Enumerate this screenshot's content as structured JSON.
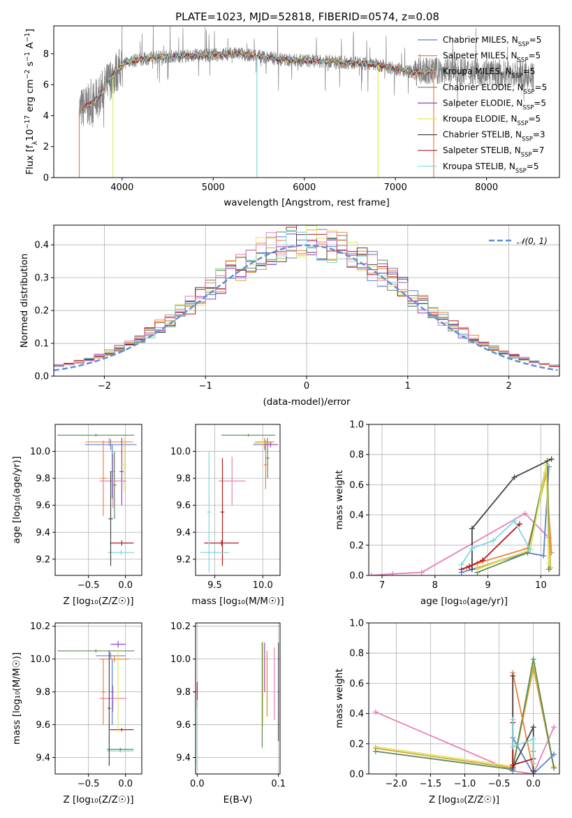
{
  "figure": {
    "title": "PLATE=1023, MJD=52818, FIBERID=0574, z=0.08"
  },
  "colors": {
    "chabrier_miles": "#5b7fd1",
    "salpeter_miles": "#f0803c",
    "kroupa_miles": "#d6a63a",
    "chabrier_elodie": "#5a8a5a",
    "salpeter_elodie": "#9b3fbf",
    "kroupa_elodie": "#e0e85a",
    "chabrier_stelib": "#444444",
    "salpeter_stelib": "#b01a1a",
    "kroupa_stelib": "#7fd8e0",
    "pink": "#e87fb8",
    "gauss": "#5b8fd9",
    "data_gray": "#7f7f7f"
  },
  "legend_spectrum": [
    {
      "label": "Chabrier MILES, N",
      "sub": "SSP",
      "suffix": "=5",
      "color": "#5b7fd1"
    },
    {
      "label": "Salpeter MILES, N",
      "sub": "SSP",
      "suffix": "=5",
      "color": "#f0803c"
    },
    {
      "label": "Kroupa MILES, N",
      "sub": "SSP",
      "suffix": "=5",
      "color": "#d6a63a"
    },
    {
      "label": "Chabrier ELODIE, N",
      "sub": "SSP",
      "suffix": "=5",
      "color": "#5a8a5a"
    },
    {
      "label": "Salpeter ELODIE, N",
      "sub": "SSP",
      "suffix": "=5",
      "color": "#9b3fbf"
    },
    {
      "label": "Kroupa ELODIE, N",
      "sub": "SSP",
      "suffix": "=5",
      "color": "#e0e85a"
    },
    {
      "label": "Chabrier STELIB, N",
      "sub": "SSP",
      "suffix": "=3",
      "color": "#444444"
    },
    {
      "label": "Salpeter STELIB, N",
      "sub": "SSP",
      "suffix": "=7",
      "color": "#b01a1a"
    },
    {
      "label": "Kroupa STELIB, N",
      "sub": "SSP",
      "suffix": "=5",
      "color": "#7fd8e0"
    }
  ],
  "legend_gauss": "𝒩(0, 1)",
  "chart_data": [
    {
      "id": "spectrum",
      "type": "line",
      "xlabel": "wavelength [Angstrom, rest frame]",
      "ylabel_parts": [
        "Flux [f",
        "λ",
        "10",
        "−17",
        " erg cm",
        "−2",
        " s",
        "−1",
        " A",
        "−1",
        "]"
      ],
      "xlim": [
        3250,
        8800
      ],
      "ylim": [
        0,
        9.8
      ],
      "xticks": [
        4000,
        5000,
        6000,
        7000,
        8000
      ],
      "yticks": [
        0,
        2,
        4,
        6,
        8
      ],
      "continuum": {
        "x": [
          3530,
          3700,
          3900,
          4050,
          4400,
          4900,
          5300,
          5800,
          6300,
          6800,
          7200,
          7420,
          7600,
          8000,
          8400,
          8520
        ],
        "y": [
          4.4,
          4.9,
          6.6,
          7.5,
          7.8,
          7.9,
          8.0,
          7.6,
          7.5,
          7.3,
          6.8,
          6.9,
          6.9,
          6.8,
          6.6,
          6.5
        ]
      },
      "dropouts": [
        {
          "x": 3530,
          "color": "#f0803c"
        },
        {
          "x": 3900,
          "color": "#e0e85a"
        },
        {
          "x": 5480,
          "color": "#7fd8e0"
        },
        {
          "x": 6810,
          "color": "#e0e85a"
        },
        {
          "x": 7420,
          "color": "#f0803c"
        }
      ],
      "grid": false,
      "legend_position": "right"
    },
    {
      "id": "residuals",
      "type": "step",
      "xlabel": "(data-model)/error",
      "ylabel": "Normed distribution",
      "xlim": [
        -2.5,
        2.5
      ],
      "ylim": [
        0,
        0.46
      ],
      "xticks": [
        -2,
        -1,
        0,
        1,
        2
      ],
      "yticks": [
        0,
        0.1,
        0.2,
        0.3,
        0.4
      ],
      "bin_width": 0.1,
      "gaussian": {
        "mu": 0,
        "sigma": 1
      },
      "grid": true,
      "legend_position": "top-right"
    },
    {
      "id": "age_vs_Z",
      "type": "errorbar",
      "xlabel": "Z [log₁₀(Z/Z☉)]",
      "ylabel": "age  [log₁₀(age/yr)]",
      "xlim": [
        -0.95,
        0.22
      ],
      "ylim": [
        9.08,
        10.2
      ],
      "xticks": [
        -0.5,
        0.0
      ],
      "yticks": [
        9.2,
        9.4,
        9.6,
        9.8,
        10.0
      ],
      "points": [
        {
          "x": -0.2,
          "xerr": 0.35,
          "y": 10.05,
          "yerr": 0.04,
          "color": "#5b7fd1"
        },
        {
          "x": -0.22,
          "xerr": 0.32,
          "y": 10.07,
          "yerr": 0.03,
          "color": "#f0803c"
        },
        {
          "x": -0.3,
          "xerr": 0.04,
          "y": 9.8,
          "yerr": 0.28,
          "color": "#f0803c"
        },
        {
          "x": -0.18,
          "xerr": 0.03,
          "y": 9.85,
          "yerr": 0.2,
          "color": "#5b7fd1"
        },
        {
          "x": -0.15,
          "xerr": 0.03,
          "y": 9.75,
          "yerr": 0.25,
          "color": "#5a8a5a"
        },
        {
          "x": -0.05,
          "xerr": 0.03,
          "y": 9.85,
          "yerr": 0.25,
          "color": "#9b3fbf"
        },
        {
          "x": -0.02,
          "xerr": 0.03,
          "y": 9.9,
          "yerr": 0.2,
          "color": "#e0e85a"
        },
        {
          "x": -0.4,
          "xerr": 0.52,
          "y": 10.12,
          "yerr": 0.01,
          "color": "#5a8a5a"
        },
        {
          "x": -0.17,
          "xerr": 0.18,
          "y": 9.78,
          "yerr": 0.2,
          "color": "#e87fb8"
        },
        {
          "x": -0.05,
          "xerr": 0.16,
          "y": 9.32,
          "yerr": 0.02,
          "color": "#b01a1a"
        },
        {
          "x": -0.06,
          "xerr": 0.18,
          "y": 9.25,
          "yerr": 0.02,
          "color": "#7fd8e0"
        },
        {
          "x": -0.2,
          "xerr": 0.03,
          "y": 9.5,
          "yerr": 0.35,
          "color": "#444444"
        }
      ]
    },
    {
      "id": "age_vs_mass",
      "type": "errorbar",
      "xlabel": "mass [log₁₀(M/M☉)]",
      "ylabel": "",
      "xlim": [
        9.3,
        10.18
      ],
      "ylim": [
        9.08,
        10.2
      ],
      "xticks": [
        9.5,
        10.0
      ],
      "yticks": [
        9.2,
        9.4,
        9.6,
        9.8,
        10.0
      ],
      "points": [
        {
          "x": 10.02,
          "xerr": 0.12,
          "y": 10.05,
          "yerr": 0.04,
          "color": "#5b7fd1"
        },
        {
          "x": 10.02,
          "xerr": 0.1,
          "y": 10.07,
          "yerr": 0.03,
          "color": "#f0803c"
        },
        {
          "x": 10.0,
          "xerr": 0.1,
          "y": 10.06,
          "yerr": 0.03,
          "color": "#e0e85a"
        },
        {
          "x": 10.08,
          "xerr": 0.08,
          "y": 10.05,
          "yerr": 0.02,
          "color": "#9b3fbf"
        },
        {
          "x": 9.85,
          "xerr": 0.28,
          "y": 10.12,
          "yerr": 0.01,
          "color": "#5a8a5a"
        },
        {
          "x": 9.68,
          "xerr": 0.14,
          "y": 9.78,
          "yerr": 0.18,
          "color": "#e87fb8"
        },
        {
          "x": 9.57,
          "xerr": 0.18,
          "y": 9.32,
          "yerr": 0.02,
          "color": "#b01a1a"
        },
        {
          "x": 9.58,
          "xerr": 0.02,
          "y": 9.55,
          "yerr": 0.4,
          "color": "#b01a1a"
        },
        {
          "x": 9.5,
          "xerr": 0.15,
          "y": 9.25,
          "yerr": 0.02,
          "color": "#7fd8e0"
        },
        {
          "x": 9.44,
          "xerr": 0.02,
          "y": 9.55,
          "yerr": 0.45,
          "color": "#7fd8e0"
        },
        {
          "x": 10.03,
          "xerr": 0.02,
          "y": 9.9,
          "yerr": 0.18,
          "color": "#f0803c"
        },
        {
          "x": 10.05,
          "xerr": 0.02,
          "y": 9.95,
          "yerr": 0.15,
          "color": "#5a8a5a"
        }
      ]
    },
    {
      "id": "weight_vs_age",
      "type": "line",
      "xlabel": "age  [log₁₀(age/yr)]",
      "ylabel": "mass weight",
      "xlim": [
        6.75,
        10.35
      ],
      "ylim": [
        0,
        1.0
      ],
      "xticks": [
        7,
        8,
        9,
        10
      ],
      "yticks": [
        0.0,
        0.2,
        0.4,
        0.6,
        0.8,
        1.0
      ],
      "series": [
        {
          "color": "#e87fb8",
          "x": [
            6.8,
            7.2,
            7.75,
            9.7,
            10.15
          ],
          "y": [
            0.0,
            0.01,
            0.02,
            0.41,
            0.25
          ]
        },
        {
          "color": "#5b7fd1",
          "x": [
            8.5,
            8.7,
            9.75,
            10.05,
            10.15
          ],
          "y": [
            0.02,
            0.04,
            0.15,
            0.13,
            0.72
          ]
        },
        {
          "color": "#f0803c",
          "x": [
            8.6,
            8.8,
            9.75,
            10.1,
            10.2
          ],
          "y": [
            0.05,
            0.08,
            0.18,
            0.68,
            0.15
          ]
        },
        {
          "color": "#d6a63a",
          "x": [
            8.8,
            9.75,
            10.12,
            10.18
          ],
          "y": [
            0.05,
            0.16,
            0.7,
            0.05
          ]
        },
        {
          "color": "#5a8a5a",
          "x": [
            8.8,
            9.75,
            10.12,
            10.15
          ],
          "y": [
            0.02,
            0.15,
            0.76,
            0.04
          ]
        },
        {
          "color": "#e0e85a",
          "x": [
            8.8,
            9.8,
            10.1,
            10.15
          ],
          "y": [
            0.04,
            0.17,
            0.73,
            0.08
          ]
        },
        {
          "color": "#444444",
          "x": [
            8.7,
            8.7,
            9.5,
            10.2
          ],
          "y": [
            0.04,
            0.31,
            0.65,
            0.77
          ]
        },
        {
          "color": "#b01a1a",
          "x": [
            8.5,
            8.65,
            8.9,
            9.6
          ],
          "y": [
            0.04,
            0.06,
            0.1,
            0.34
          ]
        },
        {
          "color": "#7fd8e0",
          "x": [
            8.5,
            8.7,
            9.1,
            9.5,
            9.8
          ],
          "y": [
            0.07,
            0.18,
            0.23,
            0.36,
            0.17
          ]
        }
      ],
      "grid": true
    },
    {
      "id": "mass_vs_Z",
      "type": "errorbar",
      "xlabel": "Z [log₁₀(Z/Z☉)]",
      "ylabel": "mass [log₁₀(M/M☉)]",
      "xlim": [
        -0.95,
        0.22
      ],
      "ylim": [
        9.3,
        10.22
      ],
      "xticks": [
        -0.5,
        0.0
      ],
      "yticks": [
        9.4,
        9.6,
        9.8,
        10.0,
        10.2
      ],
      "points": [
        {
          "x": -0.2,
          "xerr": 0.2,
          "y": 10.02,
          "yerr": 0.02,
          "color": "#5b7fd1"
        },
        {
          "x": -0.15,
          "xerr": 0.2,
          "y": 10.0,
          "yerr": 0.02,
          "color": "#f0803c"
        },
        {
          "x": -0.1,
          "xerr": 0.1,
          "y": 10.09,
          "yerr": 0.02,
          "color": "#9b3fbf"
        },
        {
          "x": -0.4,
          "xerr": 0.52,
          "y": 10.05,
          "yerr": 0.01,
          "color": "#5a8a5a"
        },
        {
          "x": -0.17,
          "xerr": 0.18,
          "y": 9.76,
          "yerr": 0.08,
          "color": "#e87fb8"
        },
        {
          "x": -0.05,
          "xerr": 0.16,
          "y": 9.57,
          "yerr": 0.01,
          "color": "#b01a1a"
        },
        {
          "x": -0.07,
          "xerr": 0.18,
          "y": 9.44,
          "yerr": 0.01,
          "color": "#7fd8e0"
        },
        {
          "x": -0.07,
          "xerr": 0.18,
          "y": 9.45,
          "yerr": 0.01,
          "color": "#5a8a5a"
        },
        {
          "x": -0.3,
          "xerr": 0.03,
          "y": 9.8,
          "yerr": 0.2,
          "color": "#f0803c"
        },
        {
          "x": -0.22,
          "xerr": 0.02,
          "y": 9.7,
          "yerr": 0.35,
          "color": "#444444"
        },
        {
          "x": -0.18,
          "xerr": 0.02,
          "y": 9.8,
          "yerr": 0.2,
          "color": "#5b7fd1"
        },
        {
          "x": -0.1,
          "xerr": 0.02,
          "y": 9.8,
          "yerr": 0.25,
          "color": "#e0e85a"
        }
      ]
    },
    {
      "id": "mass_vs_ebv",
      "type": "errorbar",
      "xlabel": "E(B-V)",
      "ylabel": "",
      "xlim": [
        -0.002,
        0.102
      ],
      "ylim": [
        9.3,
        10.22
      ],
      "xticks": [
        0.0,
        0.1
      ],
      "yticks": [
        9.4,
        9.6,
        9.8,
        10.0,
        10.2
      ],
      "points": [
        {
          "x": 0.0,
          "xerr": 0,
          "y": 9.78,
          "yerr": 0.08,
          "color": "#b01a1a"
        },
        {
          "x": 0.0,
          "xerr": 0,
          "y": 9.55,
          "yerr": 0.2,
          "color": "#7fd8e0"
        },
        {
          "x": 0.08,
          "xerr": 0,
          "y": 9.78,
          "yerr": 0.32,
          "color": "#5a8a5a"
        },
        {
          "x": 0.081,
          "xerr": 0,
          "y": 9.85,
          "yerr": 0.26,
          "color": "#e0e85a"
        },
        {
          "x": 0.083,
          "xerr": 0,
          "y": 9.95,
          "yerr": 0.15,
          "color": "#9b3fbf"
        },
        {
          "x": 0.086,
          "xerr": 0,
          "y": 9.85,
          "yerr": 0.2,
          "color": "#f0803c"
        },
        {
          "x": 0.095,
          "xerr": 0,
          "y": 9.85,
          "yerr": 0.22,
          "color": "#e87fb8"
        },
        {
          "x": 0.1,
          "xerr": 0,
          "y": 9.8,
          "yerr": 0.3,
          "color": "#444444"
        }
      ]
    },
    {
      "id": "weight_vs_Z",
      "type": "line",
      "xlabel": "Z [log₁₀(Z/Z☉)]",
      "ylabel": "mass weight",
      "xlim": [
        -2.4,
        0.38
      ],
      "ylim": [
        0,
        1.0
      ],
      "xticks": [
        -2.0,
        -1.5,
        -1.0,
        -0.5,
        0.0
      ],
      "yticks": [
        0.0,
        0.2,
        0.4,
        0.6,
        0.8,
        1.0
      ],
      "series": [
        {
          "color": "#e87fb8",
          "x": [
            -2.3,
            -0.3,
            0.0,
            0.3
          ],
          "y": [
            0.41,
            0.02,
            0.0,
            0.31
          ]
        },
        {
          "color": "#e0e85a",
          "x": [
            -2.3,
            -0.3,
            0.0,
            0.3
          ],
          "y": [
            0.18,
            0.05,
            0.73,
            0.05
          ]
        },
        {
          "color": "#d6a63a",
          "x": [
            -2.3,
            -0.3,
            0.0,
            0.3
          ],
          "y": [
            0.17,
            0.04,
            0.7,
            0.04
          ]
        },
        {
          "color": "#5a8a5a",
          "x": [
            -2.3,
            -0.3,
            0.0,
            0.3
          ],
          "y": [
            0.15,
            0.03,
            0.76,
            0.04
          ]
        },
        {
          "color": "#f0803c",
          "x": [
            -0.3,
            -0.3,
            0.0,
            0.0
          ],
          "y": [
            0.05,
            0.67,
            0.02,
            0.15
          ]
        },
        {
          "color": "#5b7fd1",
          "x": [
            -0.3,
            -0.3,
            0.0,
            0.3
          ],
          "y": [
            0.02,
            0.24,
            0.0,
            0.13
          ]
        },
        {
          "color": "#444444",
          "x": [
            -0.3,
            -0.3,
            0.0,
            0.0
          ],
          "y": [
            0.65,
            0.04,
            0.31,
            0.02
          ]
        },
        {
          "color": "#b01a1a",
          "x": [
            -0.3,
            -0.3,
            0.0
          ],
          "y": [
            0.34,
            0.06,
            0.1
          ]
        },
        {
          "color": "#7fd8e0",
          "x": [
            -0.3,
            -0.3,
            0.0,
            0.0
          ],
          "y": [
            0.36,
            0.18,
            0.23,
            0.07
          ]
        }
      ],
      "grid": true
    }
  ]
}
